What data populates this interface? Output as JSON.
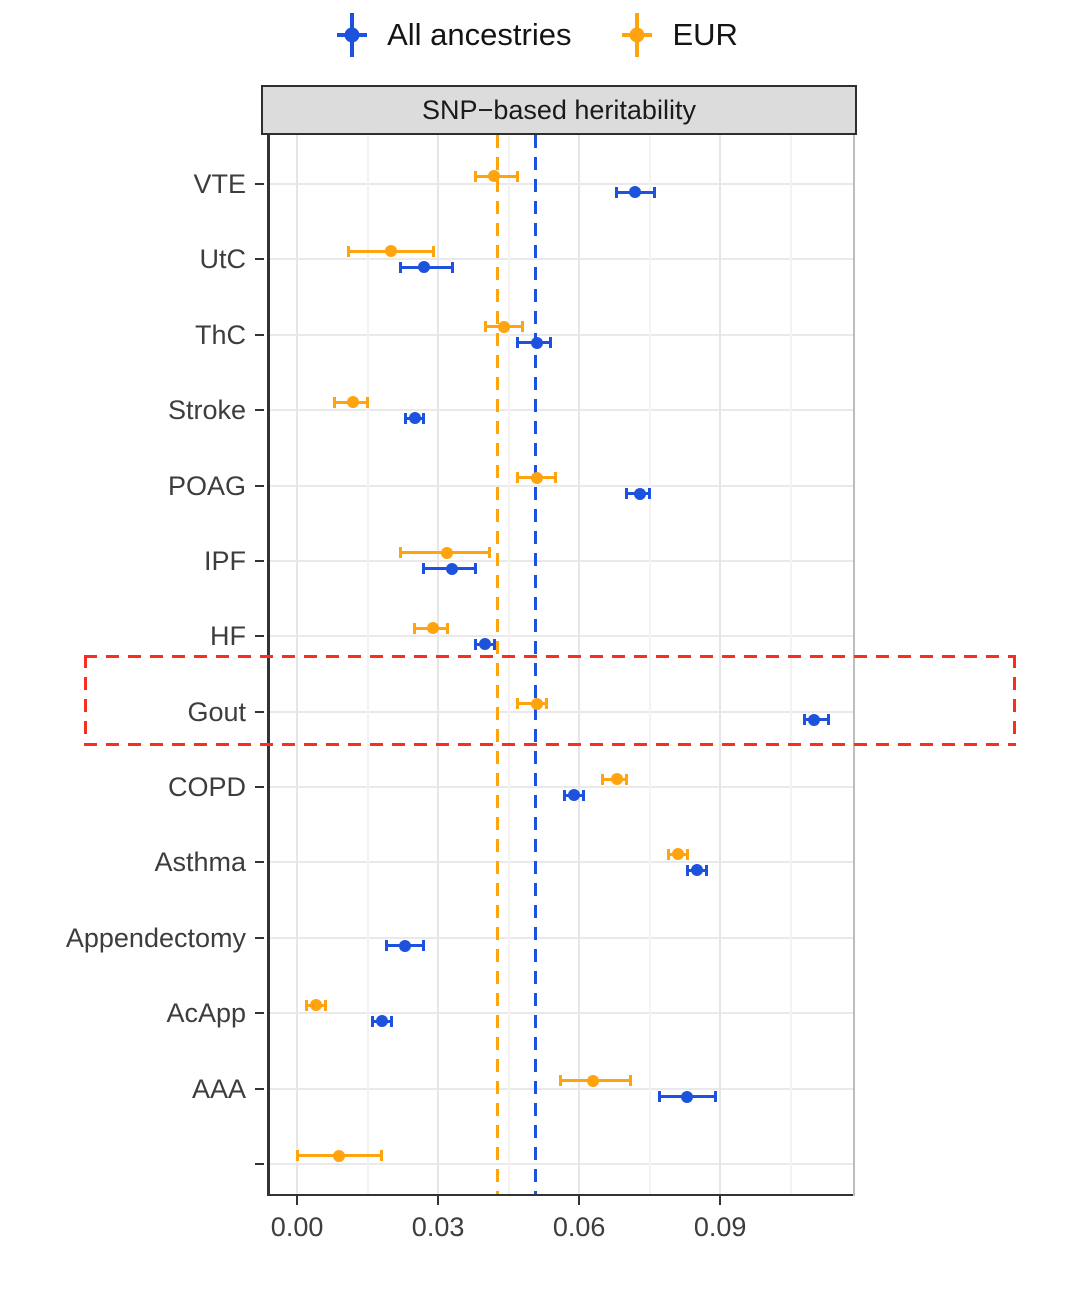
{
  "panel_title": "SNP−based heritability",
  "colors": {
    "all": "#1d52dd",
    "eur": "#ffa40e",
    "highlight": "#fa2d21",
    "grid_major": "#e6e6e6",
    "grid_minor": "#f3f3f3",
    "axis_text": "#3d3d3d"
  },
  "legend": {
    "items": [
      {
        "label": "All ancestries",
        "color_key": "all"
      },
      {
        "label": "EUR",
        "color_key": "eur"
      }
    ]
  },
  "chart_data": {
    "type": "scatter",
    "subtype": "forest-pointrange",
    "orientation": "horizontal",
    "title": "SNP−based heritability",
    "xlabel": "",
    "ylabel": "",
    "grid": true,
    "legend_position": "top",
    "xlim": [
      -0.0064,
      0.1187
    ],
    "x_major_ticks": [
      0.0,
      0.03,
      0.06,
      0.09
    ],
    "x_tick_labels": [
      "0.00",
      "0.03",
      "0.06",
      "0.09"
    ],
    "x_minor_gridlines": [
      0.015,
      0.045,
      0.075,
      0.105
    ],
    "categories": [
      "VTE",
      "UtC",
      "ThC",
      "Stroke",
      "POAG",
      "IPF",
      "HF",
      "Gout",
      "COPD",
      "Asthma",
      "Appendectomy",
      "AcApp",
      "AAA",
      ""
    ],
    "series": [
      {
        "name": "All ancestries",
        "color_key": "all",
        "points": [
          {
            "category": "VTE",
            "estimate": 0.072,
            "ci_low": 0.068,
            "ci_high": 0.076
          },
          {
            "category": "UtC",
            "estimate": 0.027,
            "ci_low": 0.022,
            "ci_high": 0.033
          },
          {
            "category": "ThC",
            "estimate": 0.051,
            "ci_low": 0.047,
            "ci_high": 0.054
          },
          {
            "category": "Stroke",
            "estimate": 0.025,
            "ci_low": 0.023,
            "ci_high": 0.027
          },
          {
            "category": "POAG",
            "estimate": 0.073,
            "ci_low": 0.07,
            "ci_high": 0.075
          },
          {
            "category": "IPF",
            "estimate": 0.033,
            "ci_low": 0.027,
            "ci_high": 0.038
          },
          {
            "category": "HF",
            "estimate": 0.04,
            "ci_low": 0.038,
            "ci_high": 0.042
          },
          {
            "category": "Gout",
            "estimate": 0.11,
            "ci_low": 0.108,
            "ci_high": 0.113
          },
          {
            "category": "COPD",
            "estimate": 0.059,
            "ci_low": 0.057,
            "ci_high": 0.061
          },
          {
            "category": "Asthma",
            "estimate": 0.085,
            "ci_low": 0.083,
            "ci_high": 0.087
          },
          {
            "category": "Appendectomy",
            "estimate": 0.023,
            "ci_low": 0.019,
            "ci_high": 0.027
          },
          {
            "category": "AcApp",
            "estimate": 0.018,
            "ci_low": 0.016,
            "ci_high": 0.02
          },
          {
            "category": "AAA",
            "estimate": 0.083,
            "ci_low": 0.077,
            "ci_high": 0.089
          }
        ]
      },
      {
        "name": "EUR",
        "color_key": "eur",
        "points": [
          {
            "category": "VTE",
            "estimate": 0.042,
            "ci_low": 0.038,
            "ci_high": 0.047
          },
          {
            "category": "UtC",
            "estimate": 0.02,
            "ci_low": 0.011,
            "ci_high": 0.029
          },
          {
            "category": "ThC",
            "estimate": 0.044,
            "ci_low": 0.04,
            "ci_high": 0.048
          },
          {
            "category": "Stroke",
            "estimate": 0.012,
            "ci_low": 0.008,
            "ci_high": 0.015
          },
          {
            "category": "POAG",
            "estimate": 0.051,
            "ci_low": 0.047,
            "ci_high": 0.055
          },
          {
            "category": "IPF",
            "estimate": 0.032,
            "ci_low": 0.022,
            "ci_high": 0.041
          },
          {
            "category": "HF",
            "estimate": 0.029,
            "ci_low": 0.025,
            "ci_high": 0.032
          },
          {
            "category": "Gout",
            "estimate": 0.051,
            "ci_low": 0.047,
            "ci_high": 0.053
          },
          {
            "category": "COPD",
            "estimate": 0.068,
            "ci_low": 0.065,
            "ci_high": 0.07
          },
          {
            "category": "Asthma",
            "estimate": 0.081,
            "ci_low": 0.079,
            "ci_high": 0.083
          },
          {
            "category": "AcApp",
            "estimate": 0.004,
            "ci_low": 0.002,
            "ci_high": 0.006
          },
          {
            "category": "AAA",
            "estimate": 0.063,
            "ci_low": 0.056,
            "ci_high": 0.071
          },
          {
            "category": "",
            "estimate": 0.009,
            "ci_low": 0.0,
            "ci_high": 0.018
          }
        ]
      }
    ],
    "reference_lines": [
      {
        "series": "All ancestries",
        "color_key": "all",
        "x": 0.0508,
        "style": "dashed"
      },
      {
        "series": "EUR",
        "color_key": "eur",
        "x": 0.0426,
        "style": "dashed"
      }
    ],
    "highlight_box": {
      "category": "Gout",
      "style": "dashed",
      "color_key": "highlight"
    }
  }
}
